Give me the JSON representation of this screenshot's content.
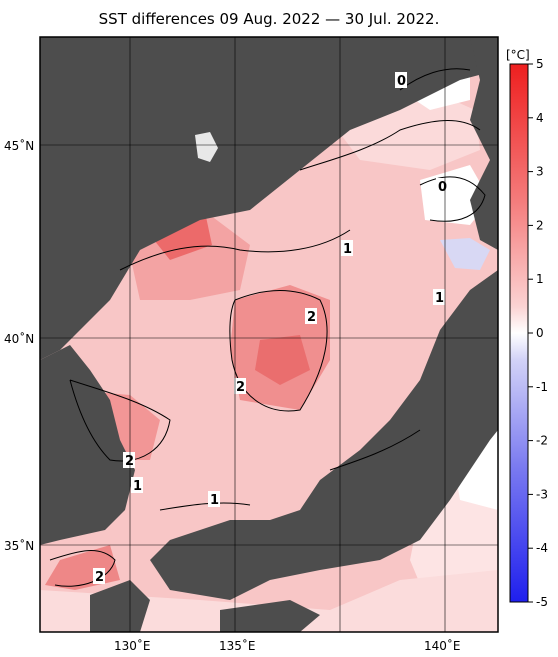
{
  "title": "SST differences 09 Aug. 2022 — 30 Jul. 2022.",
  "axes": {
    "lat_ticks": [
      {
        "label": "45˚N",
        "value": 45
      },
      {
        "label": "40˚N",
        "value": 40
      },
      {
        "label": "35˚N",
        "value": 35
      }
    ],
    "lon_ticks": [
      {
        "label": "130˚E",
        "value": 130
      },
      {
        "label": "135˚E",
        "value": 135
      },
      {
        "label": "140˚E",
        "value": 140
      }
    ]
  },
  "colorbar": {
    "unit": "[°C]",
    "ticks": [
      "5",
      "4",
      "3",
      "2",
      "1",
      "0",
      "-1",
      "-2",
      "-3",
      "-4",
      "-5"
    ],
    "colors": {
      "warm_strong": "#ee1f1f",
      "warm_mid": "#f47a7a",
      "warm_light": "#fbd2d2",
      "neutral": "#ffffff",
      "cool_light": "#d2d2f7",
      "cool_mid": "#7a7af0",
      "cool_strong": "#1f1fee"
    }
  },
  "contour_labels": [
    {
      "text": "0"
    },
    {
      "text": "0"
    },
    {
      "text": "1"
    },
    {
      "text": "1"
    },
    {
      "text": "2"
    },
    {
      "text": "2"
    },
    {
      "text": "2"
    },
    {
      "text": "1"
    },
    {
      "text": "1"
    },
    {
      "text": "2"
    }
  ],
  "colors": {
    "land": "#4d4d4d",
    "sea_base": "#f8c6c6",
    "frame": "#000000"
  }
}
